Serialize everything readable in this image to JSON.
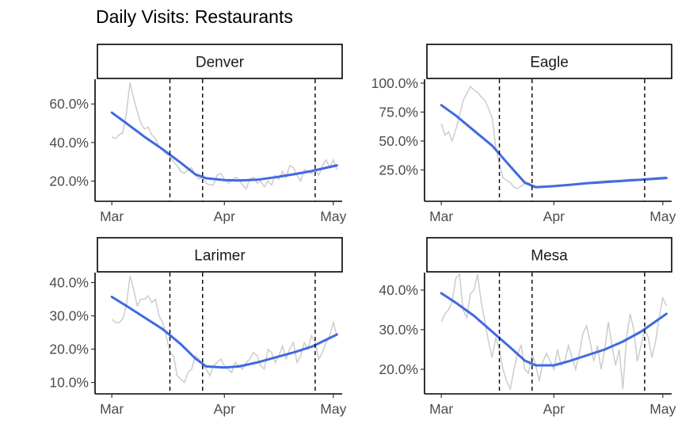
{
  "chart_data": {
    "type": "line",
    "title": "Daily Visits: Restaurants",
    "xlabel": "",
    "ylabel": "",
    "x_tick_labels": [
      "Mar",
      "Apr",
      "May"
    ],
    "x_ticks": [
      "2020-03-01",
      "2020-04-01",
      "2020-05-01"
    ],
    "xlim": [
      "2020-02-28",
      "2020-05-03"
    ],
    "vertical_lines": [
      "2020-03-17",
      "2020-03-26",
      "2020-04-26"
    ],
    "colors": {
      "raw": "#cccccc",
      "smooth": "#4169e1",
      "vline": "#000000"
    },
    "facets": [
      {
        "name": "Denver",
        "ylim": [
          0.12,
          0.72
        ],
        "y_ticks": [
          0.2,
          0.4,
          0.6
        ],
        "y_tick_labels": [
          "20.0%",
          "40.0%",
          "60.0%"
        ],
        "raw": {
          "x": [
            "2020-03-01",
            "2020-03-02",
            "2020-03-03",
            "2020-03-04",
            "2020-03-05",
            "2020-03-06",
            "2020-03-07",
            "2020-03-08",
            "2020-03-09",
            "2020-03-10",
            "2020-03-11",
            "2020-03-12",
            "2020-03-13",
            "2020-03-14",
            "2020-03-15",
            "2020-03-16",
            "2020-03-17",
            "2020-03-18",
            "2020-03-19",
            "2020-03-20",
            "2020-03-21",
            "2020-03-22",
            "2020-03-23",
            "2020-03-24",
            "2020-03-25",
            "2020-03-26",
            "2020-03-27",
            "2020-03-28",
            "2020-03-29",
            "2020-03-30",
            "2020-03-31",
            "2020-04-01",
            "2020-04-02",
            "2020-04-03",
            "2020-04-04",
            "2020-04-05",
            "2020-04-06",
            "2020-04-07",
            "2020-04-08",
            "2020-04-09",
            "2020-04-10",
            "2020-04-11",
            "2020-04-12",
            "2020-04-13",
            "2020-04-14",
            "2020-04-15",
            "2020-04-16",
            "2020-04-17",
            "2020-04-18",
            "2020-04-19",
            "2020-04-20",
            "2020-04-21",
            "2020-04-22",
            "2020-04-23",
            "2020-04-24",
            "2020-04-25",
            "2020-04-26",
            "2020-04-27",
            "2020-04-28",
            "2020-04-29",
            "2020-04-30",
            "2020-05-01",
            "2020-05-02"
          ],
          "y": [
            0.43,
            0.42,
            0.44,
            0.45,
            0.55,
            0.71,
            0.63,
            0.56,
            0.5,
            0.47,
            0.48,
            0.44,
            0.42,
            0.38,
            0.36,
            0.34,
            0.33,
            0.3,
            0.28,
            0.25,
            0.24,
            0.26,
            0.27,
            0.23,
            0.21,
            0.22,
            0.19,
            0.18,
            0.18,
            0.23,
            0.24,
            0.21,
            0.19,
            0.2,
            0.22,
            0.21,
            0.18,
            0.16,
            0.21,
            0.22,
            0.19,
            0.2,
            0.17,
            0.2,
            0.18,
            0.23,
            0.21,
            0.25,
            0.22,
            0.28,
            0.27,
            0.23,
            0.2,
            0.26,
            0.25,
            0.24,
            0.26,
            0.23,
            0.28,
            0.31,
            0.27,
            0.31,
            0.26
          ]
        },
        "smooth": {
          "x": [
            "2020-03-01",
            "2020-03-05",
            "2020-03-10",
            "2020-03-15",
            "2020-03-20",
            "2020-03-24",
            "2020-03-27",
            "2020-04-01",
            "2020-04-05",
            "2020-04-10",
            "2020-04-15",
            "2020-04-20",
            "2020-04-25",
            "2020-05-02"
          ],
          "y": [
            0.555,
            0.5,
            0.43,
            0.365,
            0.295,
            0.235,
            0.215,
            0.205,
            0.203,
            0.207,
            0.22,
            0.235,
            0.252,
            0.282
          ]
        }
      },
      {
        "name": "Eagle",
        "ylim": [
          0.02,
          1.02
        ],
        "y_ticks": [
          0.25,
          0.5,
          0.75,
          1.0
        ],
        "y_tick_labels": [
          "25.0%",
          "50.0%",
          "75.0%",
          "100.0%"
        ],
        "raw": {
          "x": [
            "2020-03-01",
            "2020-03-02",
            "2020-03-03",
            "2020-03-04",
            "2020-03-05",
            "2020-03-06",
            "2020-03-07",
            "2020-03-08",
            "2020-03-09",
            "2020-03-10",
            "2020-03-11",
            "2020-03-12",
            "2020-03-13",
            "2020-03-14",
            "2020-03-15",
            "2020-03-16",
            "2020-03-17",
            "2020-03-18",
            "2020-03-19",
            "2020-03-20",
            "2020-03-21",
            "2020-03-22",
            "2020-03-23",
            "2020-03-24",
            "2020-03-25",
            "2020-03-26",
            "2020-03-27",
            "2020-03-28",
            "2020-03-29",
            "2020-03-30",
            "2020-03-31",
            "2020-04-01",
            "2020-04-02",
            "2020-04-03",
            "2020-04-05",
            "2020-04-07",
            "2020-04-10",
            "2020-04-13",
            "2020-04-16",
            "2020-04-19",
            "2020-04-22",
            "2020-04-25",
            "2020-04-28",
            "2020-05-02"
          ],
          "y": [
            0.65,
            0.55,
            0.58,
            0.5,
            0.6,
            0.72,
            0.85,
            0.91,
            0.97,
            0.94,
            0.92,
            0.88,
            0.85,
            0.78,
            0.7,
            0.45,
            0.3,
            0.18,
            0.16,
            0.14,
            0.1,
            0.09,
            0.11,
            0.13,
            0.14,
            0.12,
            0.11,
            0.1,
            0.11,
            0.1,
            0.11,
            0.11,
            0.12,
            0.11,
            0.12,
            0.13,
            0.14,
            0.15,
            0.16,
            0.16,
            0.17,
            0.17,
            0.18,
            0.19
          ]
        },
        "smooth": {
          "x": [
            "2020-03-01",
            "2020-03-05",
            "2020-03-10",
            "2020-03-15",
            "2020-03-20",
            "2020-03-24",
            "2020-03-27",
            "2020-04-01",
            "2020-04-05",
            "2020-04-10",
            "2020-04-15",
            "2020-04-20",
            "2020-04-25",
            "2020-05-02"
          ],
          "y": [
            0.81,
            0.72,
            0.59,
            0.46,
            0.28,
            0.14,
            0.1,
            0.11,
            0.12,
            0.135,
            0.145,
            0.155,
            0.165,
            0.18
          ]
        }
      },
      {
        "name": "Larimer",
        "ylim": [
          0.08,
          0.425
        ],
        "y_ticks": [
          0.1,
          0.2,
          0.3,
          0.4
        ],
        "y_tick_labels": [
          "10.0%",
          "20.0%",
          "30.0%",
          "40.0%"
        ],
        "raw": {
          "x": [
            "2020-03-01",
            "2020-03-02",
            "2020-03-03",
            "2020-03-04",
            "2020-03-05",
            "2020-03-06",
            "2020-03-07",
            "2020-03-08",
            "2020-03-09",
            "2020-03-10",
            "2020-03-11",
            "2020-03-12",
            "2020-03-13",
            "2020-03-14",
            "2020-03-15",
            "2020-03-16",
            "2020-03-17",
            "2020-03-18",
            "2020-03-19",
            "2020-03-20",
            "2020-03-21",
            "2020-03-22",
            "2020-03-23",
            "2020-03-24",
            "2020-03-25",
            "2020-03-26",
            "2020-03-27",
            "2020-03-28",
            "2020-03-29",
            "2020-03-30",
            "2020-03-31",
            "2020-04-01",
            "2020-04-02",
            "2020-04-03",
            "2020-04-04",
            "2020-04-05",
            "2020-04-06",
            "2020-04-07",
            "2020-04-08",
            "2020-04-09",
            "2020-04-10",
            "2020-04-11",
            "2020-04-12",
            "2020-04-13",
            "2020-04-14",
            "2020-04-15",
            "2020-04-16",
            "2020-04-17",
            "2020-04-18",
            "2020-04-19",
            "2020-04-20",
            "2020-04-21",
            "2020-04-22",
            "2020-04-23",
            "2020-04-24",
            "2020-04-25",
            "2020-04-26",
            "2020-04-27",
            "2020-04-28",
            "2020-04-29",
            "2020-04-30",
            "2020-05-01",
            "2020-05-02"
          ],
          "y": [
            0.29,
            0.28,
            0.28,
            0.29,
            0.33,
            0.42,
            0.38,
            0.33,
            0.35,
            0.35,
            0.36,
            0.34,
            0.35,
            0.3,
            0.28,
            0.24,
            0.19,
            0.18,
            0.12,
            0.11,
            0.1,
            0.13,
            0.14,
            0.18,
            0.17,
            0.15,
            0.14,
            0.12,
            0.15,
            0.16,
            0.17,
            0.15,
            0.14,
            0.13,
            0.16,
            0.15,
            0.14,
            0.16,
            0.17,
            0.19,
            0.18,
            0.15,
            0.14,
            0.2,
            0.19,
            0.16,
            0.18,
            0.21,
            0.17,
            0.2,
            0.22,
            0.16,
            0.18,
            0.22,
            0.2,
            0.24,
            0.22,
            0.17,
            0.19,
            0.22,
            0.24,
            0.28,
            0.24
          ]
        },
        "smooth": {
          "x": [
            "2020-03-01",
            "2020-03-05",
            "2020-03-10",
            "2020-03-15",
            "2020-03-20",
            "2020-03-24",
            "2020-03-27",
            "2020-04-01",
            "2020-04-05",
            "2020-04-10",
            "2020-04-15",
            "2020-04-20",
            "2020-04-25",
            "2020-05-02"
          ],
          "y": [
            0.357,
            0.33,
            0.295,
            0.26,
            0.215,
            0.172,
            0.148,
            0.145,
            0.148,
            0.16,
            0.175,
            0.19,
            0.207,
            0.244
          ]
        }
      },
      {
        "name": "Mesa",
        "ylim": [
          0.15,
          0.44
        ],
        "y_ticks": [
          0.2,
          0.3,
          0.4
        ],
        "y_tick_labels": [
          "20.0%",
          "30.0%",
          "40.0%"
        ],
        "raw": {
          "x": [
            "2020-03-01",
            "2020-03-02",
            "2020-03-03",
            "2020-03-04",
            "2020-03-05",
            "2020-03-06",
            "2020-03-07",
            "2020-03-08",
            "2020-03-09",
            "2020-03-10",
            "2020-03-11",
            "2020-03-12",
            "2020-03-13",
            "2020-03-14",
            "2020-03-15",
            "2020-03-16",
            "2020-03-17",
            "2020-03-18",
            "2020-03-19",
            "2020-03-20",
            "2020-03-21",
            "2020-03-22",
            "2020-03-23",
            "2020-03-24",
            "2020-03-25",
            "2020-03-26",
            "2020-03-27",
            "2020-03-28",
            "2020-03-29",
            "2020-03-30",
            "2020-03-31",
            "2020-04-01",
            "2020-04-02",
            "2020-04-03",
            "2020-04-04",
            "2020-04-05",
            "2020-04-06",
            "2020-04-07",
            "2020-04-08",
            "2020-04-09",
            "2020-04-10",
            "2020-04-11",
            "2020-04-12",
            "2020-04-13",
            "2020-04-14",
            "2020-04-15",
            "2020-04-16",
            "2020-04-17",
            "2020-04-18",
            "2020-04-19",
            "2020-04-20",
            "2020-04-21",
            "2020-04-22",
            "2020-04-23",
            "2020-04-24",
            "2020-04-25",
            "2020-04-26",
            "2020-04-27",
            "2020-04-28",
            "2020-04-29",
            "2020-04-30",
            "2020-05-01",
            "2020-05-02"
          ],
          "y": [
            0.32,
            0.34,
            0.35,
            0.37,
            0.43,
            0.44,
            0.35,
            0.33,
            0.39,
            0.4,
            0.44,
            0.37,
            0.32,
            0.27,
            0.23,
            0.28,
            0.25,
            0.2,
            0.17,
            0.15,
            0.2,
            0.24,
            0.26,
            0.2,
            0.19,
            0.24,
            0.21,
            0.17,
            0.22,
            0.24,
            0.22,
            0.2,
            0.25,
            0.21,
            0.22,
            0.26,
            0.23,
            0.2,
            0.24,
            0.29,
            0.31,
            0.27,
            0.22,
            0.26,
            0.2,
            0.25,
            0.32,
            0.26,
            0.21,
            0.25,
            0.15,
            0.28,
            0.34,
            0.3,
            0.22,
            0.26,
            0.3,
            0.28,
            0.23,
            0.27,
            0.33,
            0.38,
            0.36
          ]
        },
        "smooth": {
          "x": [
            "2020-03-01",
            "2020-03-05",
            "2020-03-10",
            "2020-03-15",
            "2020-03-20",
            "2020-03-24",
            "2020-03-27",
            "2020-04-01",
            "2020-04-05",
            "2020-04-10",
            "2020-04-15",
            "2020-04-20",
            "2020-04-25",
            "2020-05-02"
          ],
          "y": [
            0.392,
            0.368,
            0.335,
            0.295,
            0.255,
            0.222,
            0.21,
            0.21,
            0.22,
            0.235,
            0.25,
            0.27,
            0.295,
            0.34
          ]
        }
      }
    ]
  }
}
